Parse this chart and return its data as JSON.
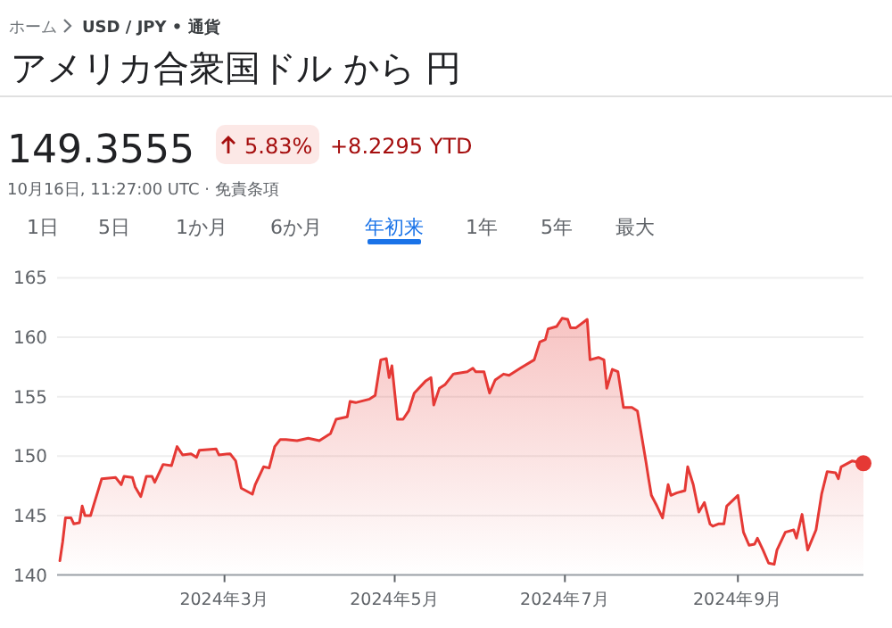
{
  "chart_data": {
    "type": "area",
    "title": "アメリカ合衆国ドル から 円",
    "annotations": [
      "ホーム",
      "USD / JPY • 通貨",
      "149.3555",
      "5.83%",
      "+8.2295 YTD",
      "10月16日, 11:27:00 UTC · 免責条項",
      "1日",
      "5日",
      "1か月",
      "6か月",
      "年初来",
      "1年",
      "5年",
      "最大"
    ],
    "xlim": [
      "2024-01-01",
      "2024-10-16"
    ],
    "xticks": [
      {
        "value": "2024-03-01",
        "label": "2024年3月"
      },
      {
        "value": "2024-05-01",
        "label": "2024年5月"
      },
      {
        "value": "2024-07-01",
        "label": "2024年7月"
      },
      {
        "value": "2024-09-01",
        "label": "2024年9月"
      }
    ],
    "ylim": [
      140,
      165
    ],
    "yticks": [
      140,
      145,
      150,
      155,
      160,
      165
    ],
    "grid": "y",
    "series": [
      {
        "color": "#e53935",
        "x": [
          "2024-01-02",
          "2024-01-03",
          "2024-01-04",
          "2024-01-06",
          "2024-01-07",
          "2024-01-09",
          "2024-01-10",
          "2024-01-11",
          "2024-01-13",
          "2024-01-14",
          "2024-01-17",
          "2024-01-22",
          "2024-01-24",
          "2024-01-25",
          "2024-01-28",
          "2024-01-29",
          "2024-01-31",
          "2024-02-02",
          "2024-02-04",
          "2024-02-05",
          "2024-02-08",
          "2024-02-11",
          "2024-02-13",
          "2024-02-15",
          "2024-02-18",
          "2024-02-20",
          "2024-02-21",
          "2024-02-27",
          "2024-02-28",
          "2024-03-03",
          "2024-03-05",
          "2024-03-07",
          "2024-03-11",
          "2024-03-12",
          "2024-03-15",
          "2024-03-17",
          "2024-03-19",
          "2024-03-21",
          "2024-03-23",
          "2024-03-27",
          "2024-03-31",
          "2024-04-04",
          "2024-04-08",
          "2024-04-10",
          "2024-04-14",
          "2024-04-15",
          "2024-04-17",
          "2024-04-22",
          "2024-04-24",
          "2024-04-26",
          "2024-04-28",
          "2024-04-29",
          "2024-04-30",
          "2024-05-02",
          "2024-05-04",
          "2024-05-06",
          "2024-05-08",
          "2024-05-12",
          "2024-05-14",
          "2024-05-15",
          "2024-05-17",
          "2024-05-19",
          "2024-05-22",
          "2024-05-27",
          "2024-05-29",
          "2024-05-30",
          "2024-06-02",
          "2024-06-04",
          "2024-06-06",
          "2024-06-09",
          "2024-06-11",
          "2024-06-15",
          "2024-06-20",
          "2024-06-22",
          "2024-06-24",
          "2024-06-25",
          "2024-06-28",
          "2024-06-30",
          "2024-07-02",
          "2024-07-03",
          "2024-07-05",
          "2024-07-09",
          "2024-07-10",
          "2024-07-13",
          "2024-07-15",
          "2024-07-16",
          "2024-07-18",
          "2024-07-20",
          "2024-07-22",
          "2024-07-25",
          "2024-07-27",
          "2024-07-30",
          "2024-07-31",
          "2024-08-01",
          "2024-08-03",
          "2024-08-05",
          "2024-08-07",
          "2024-08-08",
          "2024-08-10",
          "2024-08-13",
          "2024-08-14",
          "2024-08-16",
          "2024-08-18",
          "2024-08-20",
          "2024-08-22",
          "2024-08-23",
          "2024-08-25",
          "2024-08-27",
          "2024-08-28",
          "2024-09-01",
          "2024-09-03",
          "2024-09-05",
          "2024-09-07",
          "2024-09-08",
          "2024-09-10",
          "2024-09-12",
          "2024-09-14",
          "2024-09-15",
          "2024-09-18",
          "2024-09-21",
          "2024-09-22",
          "2024-09-24",
          "2024-09-26",
          "2024-09-29",
          "2024-10-01",
          "2024-10-03",
          "2024-10-06",
          "2024-10-07",
          "2024-10-08",
          "2024-10-12",
          "2024-10-16"
        ],
        "values": [
          141.2,
          142.8,
          144.8,
          144.8,
          144.3,
          144.4,
          145.8,
          145.0,
          145.0,
          145.8,
          148.1,
          148.2,
          147.6,
          148.3,
          148.2,
          147.4,
          146.6,
          148.3,
          148.3,
          147.8,
          149.3,
          149.2,
          150.8,
          150.1,
          150.2,
          149.9,
          150.5,
          150.6,
          150.1,
          150.2,
          149.6,
          147.3,
          146.8,
          147.6,
          149.1,
          149.0,
          150.8,
          151.4,
          151.4,
          151.3,
          151.5,
          151.3,
          151.9,
          153.1,
          153.3,
          154.6,
          154.5,
          154.8,
          155.1,
          158.1,
          158.2,
          156.6,
          157.6,
          153.1,
          153.1,
          153.8,
          155.3,
          156.3,
          156.6,
          154.3,
          155.7,
          156.0,
          156.9,
          157.1,
          157.4,
          157.1,
          157.1,
          155.3,
          156.4,
          156.9,
          156.8,
          157.4,
          158.1,
          159.6,
          159.8,
          160.7,
          160.9,
          161.6,
          161.5,
          160.8,
          160.8,
          161.5,
          158.1,
          158.3,
          158.1,
          155.7,
          157.3,
          157.1,
          154.1,
          154.1,
          153.8,
          149.6,
          148.1,
          146.7,
          145.8,
          144.8,
          147.6,
          146.7,
          146.9,
          147.1,
          149.1,
          147.6,
          145.3,
          146.1,
          144.3,
          144.1,
          144.3,
          144.3,
          145.8,
          146.7,
          143.6,
          142.5,
          142.6,
          143.1,
          142.1,
          141.0,
          140.9,
          142.1,
          143.6,
          143.8,
          143.1,
          145.1,
          142.1,
          143.8,
          146.8,
          148.7,
          148.6,
          148.1,
          149.1,
          149.6,
          149.4
        ]
      },
      {
        "type": "scatter",
        "color": "#e53935",
        "marker": "circle",
        "x": [
          "2024-10-16"
        ],
        "values": [
          149.4
        ]
      }
    ]
  }
}
